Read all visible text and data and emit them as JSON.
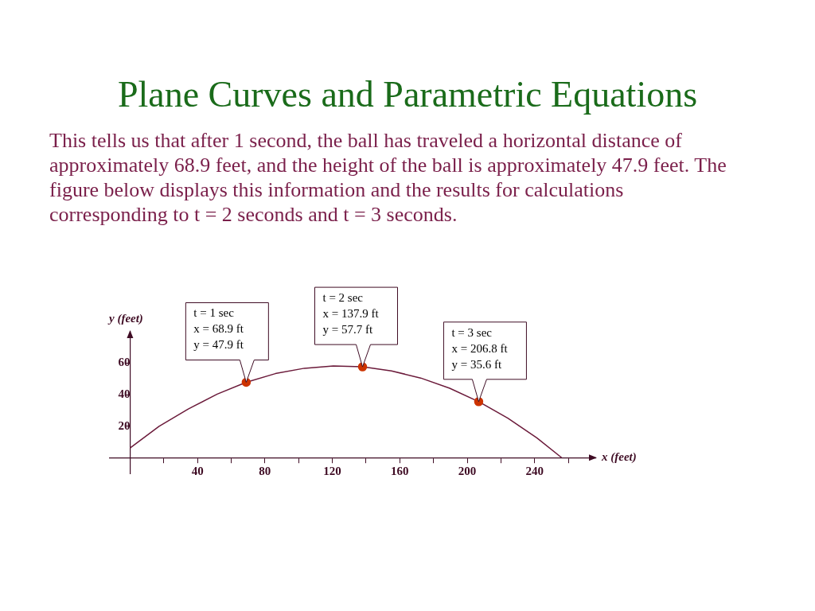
{
  "chart_data": {
    "type": "line",
    "title": "Plane Curves and Parametric Equations",
    "subtitle": "This tells us that after 1 second, the ball has traveled a horizontal distance of approximately 68.9 feet, and the height of the ball is approximately 47.9 feet. The figure below displays this information and the results for calculations corresponding to t = 2 seconds and t = 3 seconds.",
    "xlabel": "x (feet)",
    "ylabel": "y (feet)",
    "xlim": [
      -12,
      276
    ],
    "ylim": [
      -10,
      80
    ],
    "xticks": [
      {
        "value": 20,
        "label": null
      },
      40,
      {
        "value": 60,
        "label": null
      },
      80,
      {
        "value": 100,
        "label": null
      },
      120,
      {
        "value": 140,
        "label": null
      },
      160,
      {
        "value": 180,
        "label": null
      },
      200,
      {
        "value": 220,
        "label": null
      },
      240,
      {
        "value": 260,
        "label": null
      }
    ],
    "yticks": [
      20,
      40,
      60
    ],
    "series": [
      {
        "type": "line",
        "color": "#6b1a3a",
        "marker": "none",
        "x": [
          0,
          17.2,
          34.5,
          51.7,
          68.9,
          86.2,
          103.4,
          120.6,
          137.9,
          155.1,
          172.4,
          189.6,
          206.8,
          224.1,
          241.3,
          256
        ],
        "values": [
          6.1,
          19.9,
          30.9,
          40.4,
          47.9,
          53.4,
          56.8,
          58.3,
          57.7,
          55.1,
          50.6,
          44.1,
          35.6,
          25.1,
          12.6,
          0
        ]
      },
      {
        "type": "scatter",
        "color": "#cc3300",
        "marker": "circle",
        "x": [
          68.9,
          137.9,
          206.8
        ],
        "values": [
          47.9,
          57.7,
          35.6
        ]
      }
    ],
    "annotations": [
      {
        "text": "t = 1 sec\nx = 68.9 ft\ny = 47.9 ft",
        "x": 68.9,
        "y": 47.9
      },
      {
        "text": "t = 2 sec\nx = 137.9 ft\ny = 57.7 ft",
        "x": 137.9,
        "y": 57.7
      },
      {
        "text": "t = 3 sec\nx = 206.8 ft\ny = 35.6 ft",
        "x": 206.8,
        "y": 35.6
      }
    ]
  }
}
